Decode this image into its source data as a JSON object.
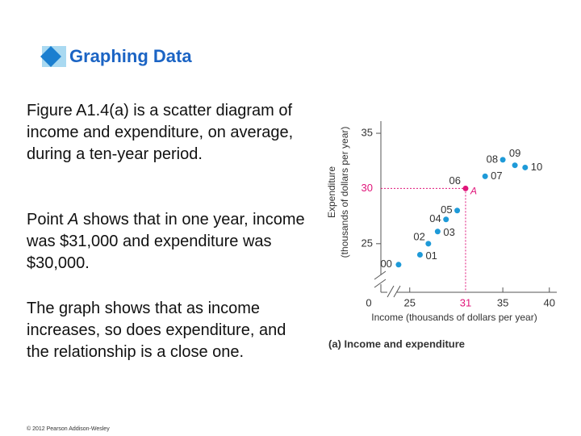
{
  "slide": {
    "title": "Graphing Data",
    "paragraphs": [
      "Figure A1.4(a) is a scatter diagram of income and expenditure, on average, during a ten-year period.",
      {
        "before": "Point ",
        "italic": "A",
        "after": " shows that in one year, income was $31,000 and expenditure was $30,000."
      },
      "The graph shows that as income increases, so does expenditure, and the relationship is a close one."
    ],
    "footer": "© 2012 Pearson Addison-Wesley"
  },
  "chart_data": {
    "type": "scatter",
    "caption": "(a) Income and expenditure",
    "x_label": "Income (thousands of dollars per year)",
    "y_label": [
      "Expenditure",
      "(thousands of dollars per year)"
    ],
    "origin_label": "0",
    "categories": [
      "00",
      "01",
      "02",
      "03",
      "04",
      "05",
      "06",
      "07",
      "08",
      "09",
      "10"
    ],
    "series": [
      {
        "color": "#1e9ad8",
        "x": [
          23.8,
          26.1,
          27.0,
          28.0,
          28.9,
          30.1,
          31,
          33.1,
          35.0,
          36.3,
          37.4
        ],
        "values": [
          23.1,
          24.0,
          25.0,
          26.1,
          27.2,
          28.0,
          30,
          31.1,
          32.6,
          32.1,
          31.9
        ]
      }
    ],
    "highlight": {
      "point": "A",
      "x": 31,
      "y": 30,
      "color": "#e0157a"
    },
    "xlim": [
      21.9,
      40.8
    ],
    "ylim": [
      20.6,
      36.1
    ],
    "xticks": [
      25,
      35,
      40
    ],
    "yticks": [
      25,
      35
    ]
  }
}
